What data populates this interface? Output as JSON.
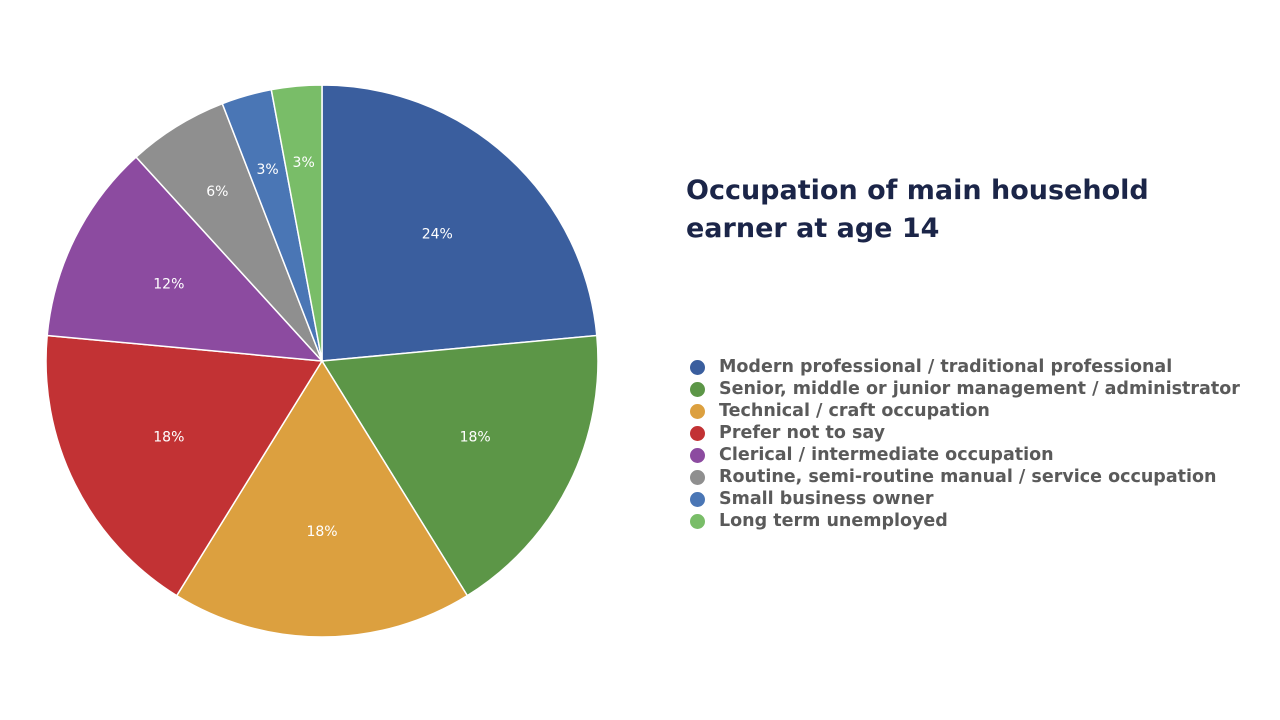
{
  "chart_data": {
    "type": "pie",
    "title_lines": [
      "Occupation of main household",
      "earner at age 14"
    ],
    "legend_position": "right",
    "slices": [
      {
        "label": "Modern professional  / traditional professional",
        "value": 24,
        "display": "24%",
        "color": "#3a5e9e"
      },
      {
        "label": "Senior, middle or junior management / administrator",
        "value": 18,
        "display": "18%",
        "color": "#5c9647"
      },
      {
        "label": "Technical / craft occupation",
        "value": 18,
        "display": "18%",
        "color": "#dca03f"
      },
      {
        "label": "Prefer not to say",
        "value": 18,
        "display": "18%",
        "color": "#c23234"
      },
      {
        "label": "Clerical / intermediate occupation",
        "value": 12,
        "display": "12%",
        "color": "#8c4ba0"
      },
      {
        "label": "Routine, semi-routine manual / service occupation",
        "value": 6,
        "display": "6%",
        "color": "#8f8f8f"
      },
      {
        "label": "Small business owner",
        "value": 3,
        "display": "3%",
        "color": "#4a76b5"
      },
      {
        "label": "Long term unemployed",
        "value": 3,
        "display": "3%",
        "color": "#79bd68"
      }
    ]
  }
}
